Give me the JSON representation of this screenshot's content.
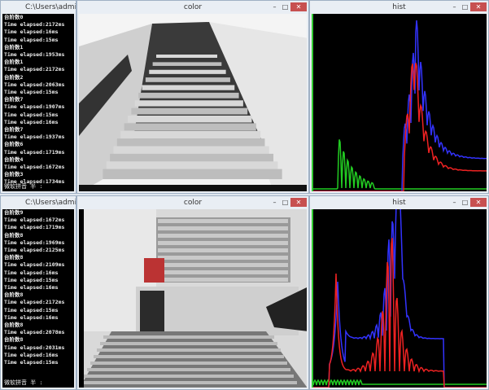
{
  "windows": [
    {
      "title": "C:\\Users\\admir",
      "lines": [
        "台阶数0",
        "Time elapsed:2172ms",
        "Time elapsed:16ms",
        "Time elapsed:15ms",
        "台阶数1",
        "Time elapsed:1953ms",
        "台阶数1",
        "Time elapsed:2172ms",
        "台阶数2",
        "Time elapsed:2063ms",
        "Time elapsed:15ms",
        "台阶数7",
        "Time elapsed:1907ms",
        "Time elapsed:15ms",
        "Time elapsed:16ms",
        "台阶数7",
        "Time elapsed:1937ms",
        "台阶数6",
        "Time elapsed:1719ms",
        "台阶数4",
        "Time elapsed:1672ms",
        "台阶数3",
        "Time elapsed:1734ms"
      ],
      "status": "微软拼音 半 :"
    },
    {
      "title": "color"
    },
    {
      "title": "hist"
    },
    {
      "title": "C:\\Users\\admir",
      "lines": [
        "台阶数9",
        "Time elapsed:1672ms",
        "Time elapsed:1719ms",
        "台阶数8",
        "Time elapsed:1969ms",
        "Time elapsed:2125ms",
        "台阶数8",
        "Time elapsed:2109ms",
        "Time elapsed:16ms",
        "Time elapsed:15ms",
        "Time elapsed:16ms",
        "台阶数8",
        "Time elapsed:2172ms",
        "Time elapsed:15ms",
        "Time elapsed:16ms",
        "台阶数8",
        "Time elapsed:2078ms",
        "台阶数8",
        "Time elapsed:2031ms",
        "Time elapsed:16ms",
        "Time elapsed:15ms"
      ],
      "status": "微软拼音 半 :"
    },
    {
      "title": "color"
    },
    {
      "title": "hist"
    }
  ]
}
